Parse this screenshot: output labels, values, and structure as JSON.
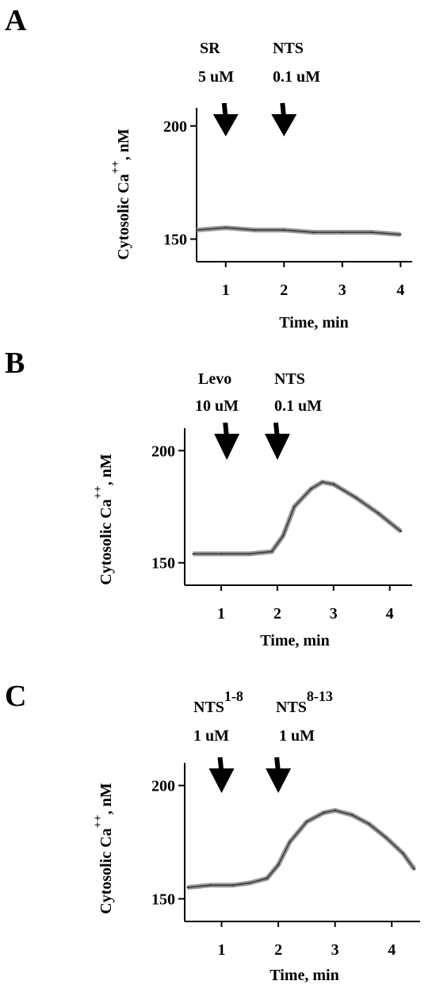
{
  "chart_data": [
    {
      "panel_label": "A",
      "type": "line",
      "xlabel": "Time, min",
      "ylabel": "Cytosolic Ca",
      "ylabel_sup": "++",
      "ylabel_unit": ", nM",
      "x_ticks": [
        1,
        2,
        3,
        4
      ],
      "y_ticks": [
        150,
        200
      ],
      "xlim": [
        0.5,
        4.2
      ],
      "ylim": [
        140,
        208
      ],
      "annotations": [
        {
          "line1": "SR",
          "line2": "5 uM",
          "x": 1.0
        },
        {
          "line1": "NTS",
          "line2": "0.1 uM",
          "x": 2.0
        }
      ],
      "series": [
        {
          "x": [
            0.5,
            1.0,
            1.5,
            2.0,
            2.5,
            3.0,
            3.5,
            4.0
          ],
          "values": [
            154,
            155,
            154,
            154,
            153,
            153,
            153,
            152
          ]
        }
      ]
    },
    {
      "panel_label": "B",
      "type": "line",
      "xlabel": "Time, min",
      "ylabel": "Cytosolic Ca",
      "ylabel_sup": "++",
      "ylabel_unit": ", nM",
      "x_ticks": [
        1,
        2,
        3,
        4
      ],
      "y_ticks": [
        150,
        200
      ],
      "xlim": [
        0.35,
        4.4
      ],
      "ylim": [
        140,
        210
      ],
      "annotations": [
        {
          "line1": "Levo",
          "line2": "10 uM",
          "x": 1.1
        },
        {
          "line1": "NTS",
          "line2": "0.1 uM",
          "x": 2.0
        }
      ],
      "series": [
        {
          "x": [
            0.5,
            1.0,
            1.5,
            1.9,
            2.1,
            2.3,
            2.6,
            2.8,
            3.0,
            3.4,
            3.8,
            4.2
          ],
          "values": [
            154,
            154,
            154,
            155,
            162,
            175,
            183,
            186,
            185,
            179,
            172,
            164
          ]
        }
      ]
    },
    {
      "panel_label": "C",
      "type": "line",
      "xlabel": "Time, min",
      "ylabel": "Cytosolic Ca",
      "ylabel_sup": "++",
      "ylabel_unit": ", nM",
      "x_ticks": [
        1,
        2,
        3,
        4
      ],
      "y_ticks": [
        150,
        200
      ],
      "xlim": [
        0.35,
        4.5
      ],
      "ylim": [
        140,
        210
      ],
      "annotations": [
        {
          "line1": "NTS",
          "line1_sup": "1-8",
          "line2": "1 uM",
          "x": 1.0
        },
        {
          "line1": "NTS",
          "line1_sup": "8-13",
          "line2": "1 uM",
          "x": 2.0
        }
      ],
      "series": [
        {
          "x": [
            0.4,
            0.8,
            1.2,
            1.5,
            1.8,
            2.0,
            2.2,
            2.5,
            2.8,
            3.0,
            3.3,
            3.6,
            3.9,
            4.2,
            4.4
          ],
          "values": [
            155,
            156,
            156,
            157,
            159,
            165,
            175,
            184,
            188,
            189,
            187,
            183,
            177,
            170,
            163
          ]
        }
      ]
    }
  ]
}
